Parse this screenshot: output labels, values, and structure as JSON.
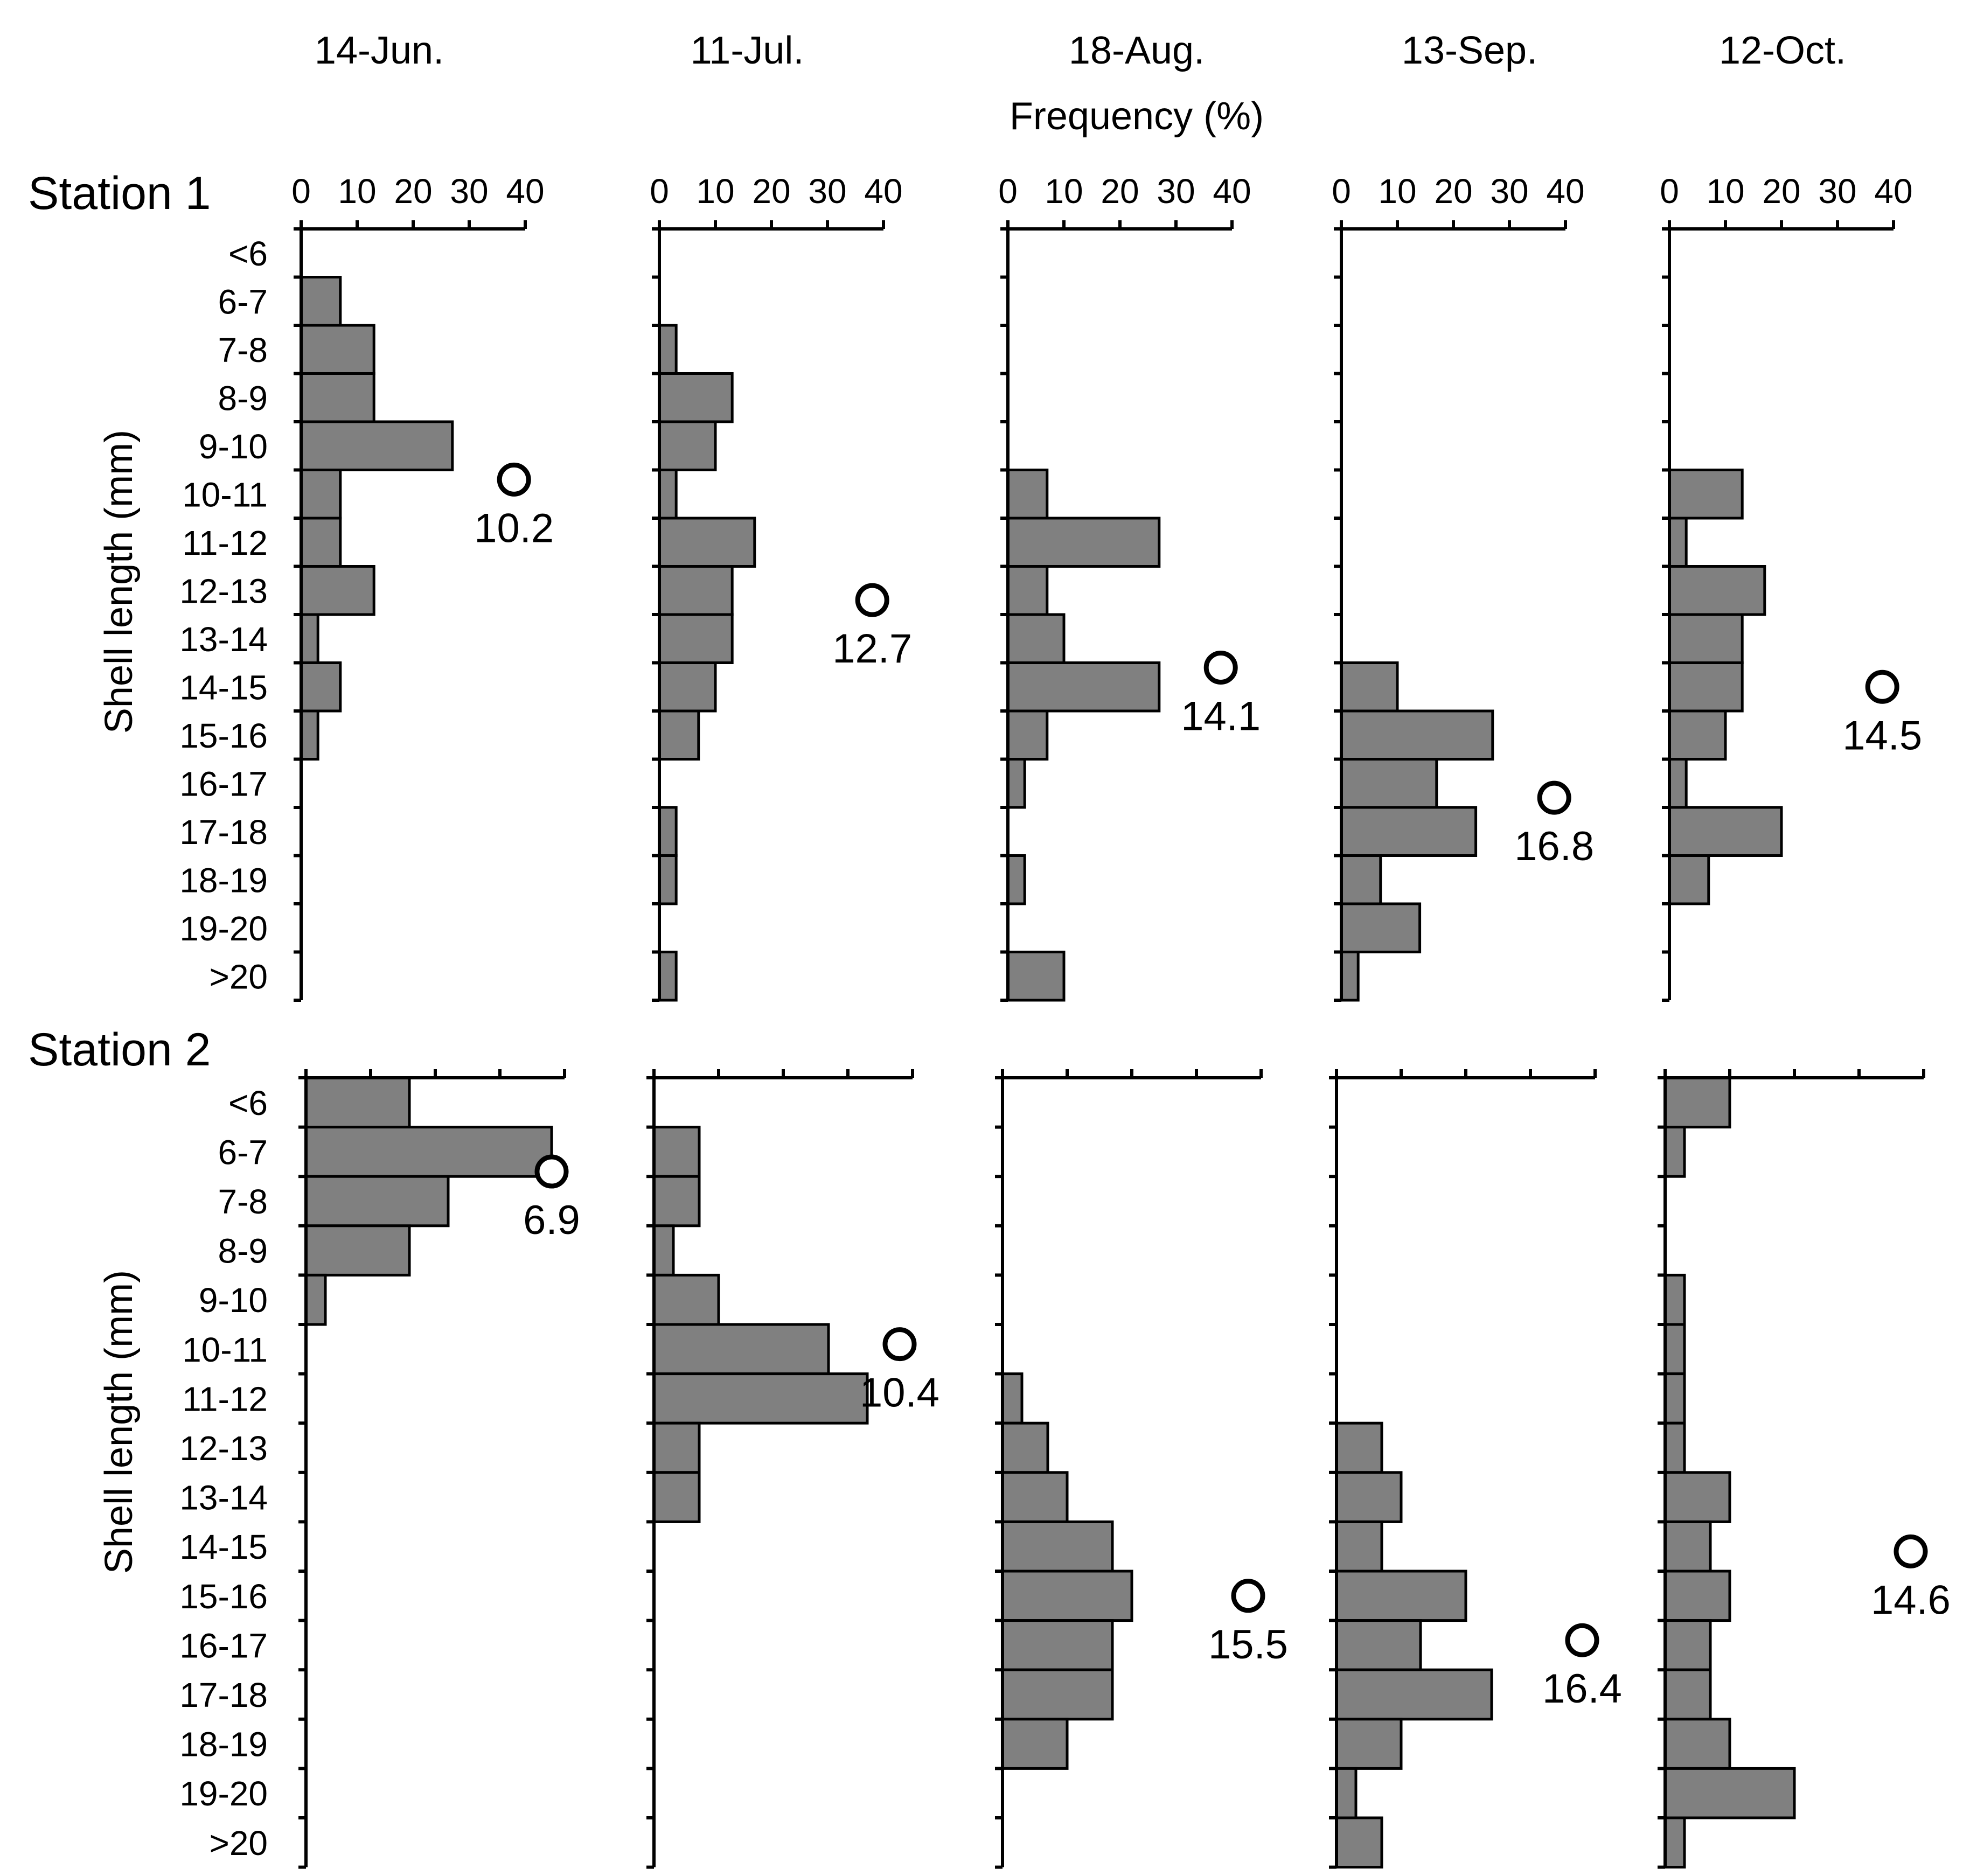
{
  "figure": {
    "frequency_label": "Frequency (%)",
    "shell_length_label": "Shell length (mm)"
  },
  "colors": {
    "bar": "#808080",
    "axis": "#000000",
    "marker": "#ffffff"
  },
  "chart_data": {
    "type": "bar",
    "orientation": "horizontal",
    "title": "",
    "xlabel": "Frequency (%)",
    "ylabel": "Shell length (mm)",
    "xlim": [
      0,
      40
    ],
    "xticks": [
      "0",
      "10",
      "20",
      "30",
      "40"
    ],
    "categories": [
      "<6",
      "6-7",
      "7-8",
      "8-9",
      "9-10",
      "10-11",
      "11-12",
      "12-13",
      "13-14",
      "14-15",
      "15-16",
      "16-17",
      "17-18",
      "18-19",
      "19-20",
      ">20"
    ],
    "dates": [
      "14-Jun.",
      "11-Jul.",
      "18-Aug.",
      "13-Sep.",
      "12-Oct."
    ],
    "stations": [
      {
        "name": "Station 1",
        "series": [
          {
            "name": "14-Jun.",
            "values": [
              0,
              7,
              13,
              13,
              27,
              7,
              7,
              13,
              3,
              7,
              3,
              0,
              0,
              0,
              0,
              0
            ],
            "mean": 10.2
          },
          {
            "name": "11-Jul.",
            "values": [
              0,
              0,
              3,
              13,
              10,
              3,
              17,
              13,
              13,
              10,
              7,
              0,
              3,
              3,
              0,
              3
            ],
            "mean": 12.7
          },
          {
            "name": "18-Aug.",
            "values": [
              0,
              0,
              0,
              0,
              0,
              7,
              27,
              7,
              10,
              27,
              7,
              3,
              0,
              3,
              0,
              10
            ],
            "mean": 14.1
          },
          {
            "name": "13-Sep.",
            "values": [
              0,
              0,
              0,
              0,
              0,
              0,
              0,
              0,
              0,
              10,
              27,
              17,
              24,
              7,
              14,
              3
            ],
            "mean": 16.8
          },
          {
            "name": "12-Oct.",
            "values": [
              0,
              0,
              0,
              0,
              0,
              13,
              3,
              17,
              13,
              13,
              10,
              3,
              20,
              7,
              0,
              0
            ],
            "mean": 14.5
          }
        ]
      },
      {
        "name": "Station 2",
        "series": [
          {
            "name": "14-Jun.",
            "values": [
              16,
              38,
              22,
              16,
              3,
              0,
              0,
              0,
              0,
              0,
              0,
              0,
              0,
              0,
              0,
              0
            ],
            "mean": 6.9
          },
          {
            "name": "11-Jul.",
            "values": [
              0,
              7,
              7,
              3,
              10,
              27,
              33,
              7,
              7,
              0,
              0,
              0,
              0,
              0,
              0,
              0
            ],
            "mean": 10.4
          },
          {
            "name": "18-Aug.",
            "values": [
              0,
              0,
              0,
              0,
              0,
              0,
              3,
              7,
              10,
              17,
              20,
              17,
              17,
              10,
              0,
              0
            ],
            "mean": 15.5
          },
          {
            "name": "13-Sep.",
            "values": [
              0,
              0,
              0,
              0,
              0,
              0,
              0,
              7,
              10,
              7,
              20,
              13,
              24,
              10,
              3,
              7
            ],
            "mean": 16.4
          },
          {
            "name": "12-Oct.",
            "values": [
              10,
              3,
              0,
              0,
              3,
              3,
              3,
              3,
              10,
              7,
              10,
              7,
              7,
              10,
              20,
              3
            ],
            "mean": 14.6
          }
        ]
      }
    ]
  }
}
